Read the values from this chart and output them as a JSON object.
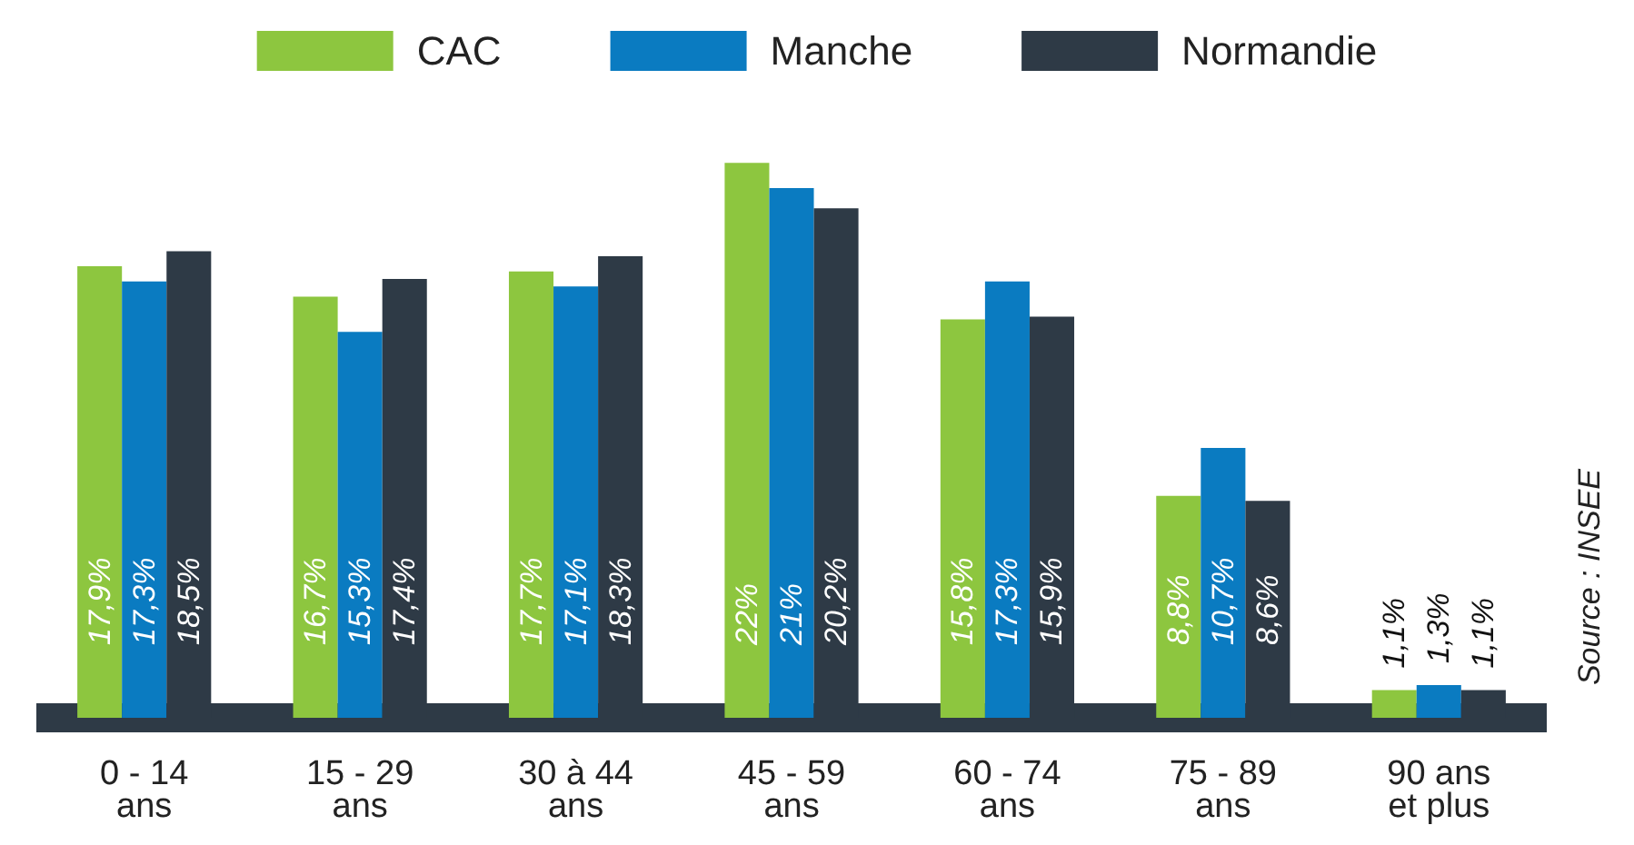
{
  "chart_data": {
    "type": "bar",
    "categories": [
      "0 - 14\nans",
      "15 - 29\nans",
      "30 à 44\nans",
      "45 - 59\nans",
      "60 - 74\nans",
      "75 - 89\nans",
      "90 ans\net plus"
    ],
    "series": [
      {
        "name": "CAC",
        "color": "#8dc63f",
        "values": [
          17.9,
          16.7,
          17.7,
          22,
          15.8,
          8.8,
          1.1
        ],
        "value_labels": [
          "17,9%",
          "16,7%",
          "17,7%",
          "22%",
          "15,8%",
          "8,8%",
          "1,1%"
        ]
      },
      {
        "name": "Manche",
        "color": "#0a7bc1",
        "values": [
          17.3,
          15.3,
          17.1,
          21,
          17.3,
          10.7,
          1.3
        ],
        "value_labels": [
          "17,3%",
          "15,3%",
          "17,1%",
          "21%",
          "17,3%",
          "10,7%",
          "1,3%"
        ]
      },
      {
        "name": "Normandie",
        "color": "#2e3a46",
        "values": [
          18.5,
          17.4,
          18.3,
          20.2,
          15.9,
          8.6,
          1.1
        ],
        "value_labels": [
          "18,5%",
          "17,4%",
          "18,3%",
          "20,2%",
          "15,9%",
          "8,6%",
          "1,1%"
        ]
      }
    ],
    "annotations": [
      "Source : INSEE"
    ],
    "legend": "top"
  }
}
